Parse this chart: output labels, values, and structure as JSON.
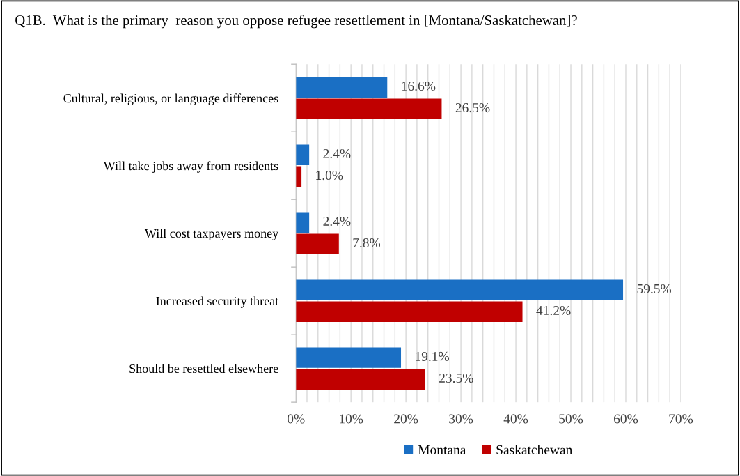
{
  "chart_data": {
    "type": "bar",
    "orientation": "horizontal",
    "title": "Q1B.  What is the primary  reason you oppose refugee resettlement in [Montana/Saskatchewan]?",
    "categories": [
      "Cultural, religious, or language differences",
      "Will take jobs away from residents",
      "Will cost taxpayers money",
      "Increased security threat",
      "Should be resettled elsewhere"
    ],
    "series": [
      {
        "name": "Montana",
        "color": "#1a6fc4",
        "values": [
          16.6,
          2.4,
          2.4,
          59.5,
          19.1
        ],
        "value_labels": [
          "16.6%",
          "2.4%",
          "2.4%",
          "59.5%",
          "19.1%"
        ]
      },
      {
        "name": "Saskatchewan",
        "color": "#c00000",
        "values": [
          26.5,
          1.0,
          7.8,
          41.2,
          23.5
        ],
        "value_labels": [
          "26.5%",
          "1.0%",
          "7.8%",
          "41.2%",
          "23.5%"
        ]
      }
    ],
    "xlim": [
      0,
      70
    ],
    "xticks": [
      {
        "value": 0,
        "label": "0%"
      },
      {
        "value": 2,
        "label": null
      },
      {
        "value": 4,
        "label": null
      },
      {
        "value": 6,
        "label": null
      },
      {
        "value": 8,
        "label": null
      },
      {
        "value": 10,
        "label": "10%"
      },
      {
        "value": 12,
        "label": null
      },
      {
        "value": 14,
        "label": null
      },
      {
        "value": 16,
        "label": null
      },
      {
        "value": 18,
        "label": null
      },
      {
        "value": 20,
        "label": "20%"
      },
      {
        "value": 22,
        "label": null
      },
      {
        "value": 24,
        "label": null
      },
      {
        "value": 26,
        "label": null
      },
      {
        "value": 28,
        "label": null
      },
      {
        "value": 30,
        "label": "30%"
      },
      {
        "value": 32,
        "label": null
      },
      {
        "value": 34,
        "label": null
      },
      {
        "value": 36,
        "label": null
      },
      {
        "value": 38,
        "label": null
      },
      {
        "value": 40,
        "label": "40%"
      },
      {
        "value": 42,
        "label": null
      },
      {
        "value": 44,
        "label": null
      },
      {
        "value": 46,
        "label": null
      },
      {
        "value": 48,
        "label": null
      },
      {
        "value": 50,
        "label": "50%"
      },
      {
        "value": 52,
        "label": null
      },
      {
        "value": 54,
        "label": null
      },
      {
        "value": 56,
        "label": null
      },
      {
        "value": 58,
        "label": null
      },
      {
        "value": 60,
        "label": "60%"
      },
      {
        "value": 62,
        "label": null
      },
      {
        "value": 64,
        "label": null
      },
      {
        "value": 66,
        "label": null
      },
      {
        "value": 68,
        "label": null
      },
      {
        "value": 70,
        "label": "70%"
      }
    ],
    "grid": "x",
    "legend": "bottom"
  }
}
